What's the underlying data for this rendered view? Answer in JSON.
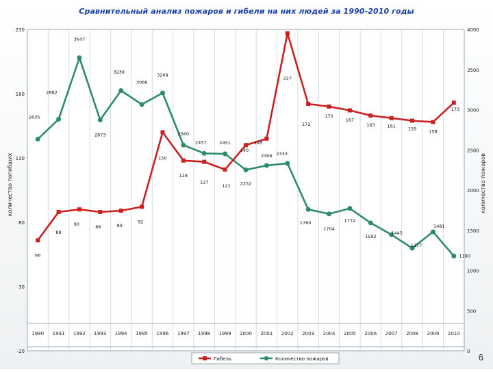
{
  "page": {
    "title": "Сравнительный анализ пожаров и гибели на них людей за 1990-2010 годы",
    "page_number": "6"
  },
  "chart_data": {
    "type": "line",
    "categories": [
      "1990",
      "1991",
      "1992",
      "1993",
      "1994",
      "1995",
      "1996",
      "1997",
      "1998",
      "1999",
      "2000",
      "2001",
      "2002",
      "2003",
      "2004",
      "2005",
      "2006",
      "2007",
      "2008",
      "2009",
      "2010"
    ],
    "series": [
      {
        "name": "Гибель",
        "axis": "left",
        "color": "#cc1f1f",
        "marker": "square",
        "values": [
          66,
          88,
          90,
          88,
          89,
          92,
          150,
          128,
          127,
          121,
          140,
          145,
          227,
          172,
          170,
          167,
          163,
          161,
          159,
          158,
          173
        ]
      },
      {
        "name": "Количество пожаров",
        "axis": "right",
        "color": "#2e8b6a",
        "marker": "circle",
        "values": [
          2635,
          2882,
          3647,
          2873,
          3238,
          3066,
          3209,
          2560,
          2457,
          2451,
          2252,
          2306,
          2333,
          1760,
          1704,
          1772,
          1592,
          1445,
          1277,
          1481,
          1180
        ]
      }
    ],
    "left_axis": {
      "label": "количество погибших",
      "ylim": [
        -20,
        230
      ],
      "ticks": [
        "230",
        "180",
        "130",
        "80",
        "30",
        "-20"
      ]
    },
    "right_axis": {
      "label": "количество пожаров",
      "ylim": [
        0,
        4000
      ],
      "ticks": [
        "4000",
        "3500",
        "3000",
        "2500",
        "2000",
        "1500",
        "1000",
        "500",
        "0"
      ]
    },
    "grid": "vertical",
    "legend_position": "bottom"
  }
}
